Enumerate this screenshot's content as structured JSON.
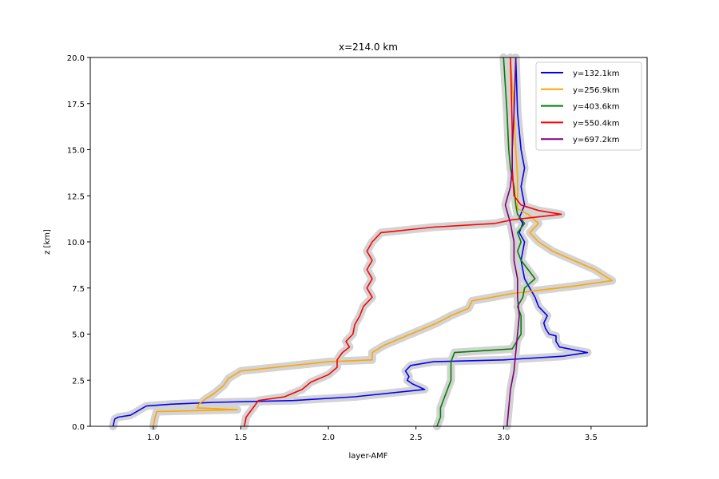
{
  "chart_data": {
    "type": "line",
    "title": "x=214.0 km",
    "xlabel": "layer-AMF",
    "ylabel": "z [km]",
    "xlim": [
      0.64,
      3.82
    ],
    "ylim": [
      0,
      20
    ],
    "xticks": [
      1.0,
      1.5,
      2.0,
      2.5,
      3.0,
      3.5
    ],
    "xtick_labels": [
      "1.0",
      "1.5",
      "2.0",
      "2.5",
      "3.0",
      "3.5"
    ],
    "yticks": [
      0,
      2.5,
      5,
      7.5,
      10,
      12.5,
      15,
      17.5,
      20
    ],
    "ytick_labels": [
      "0.0",
      "2.5",
      "5.0",
      "7.5",
      "10.0",
      "12.5",
      "15.0",
      "17.5",
      "20.0"
    ],
    "grid": false,
    "legend_position": "top-right",
    "uncertainty_band_color": "#d3d3d3",
    "series": [
      {
        "name": "y=132.1km",
        "color": "#0000ff",
        "z": [
          0.0,
          0.4,
          0.5,
          0.6,
          1.1,
          1.2,
          1.3,
          1.4,
          1.6,
          2.0,
          2.3,
          2.5,
          2.7,
          3.0,
          3.3,
          3.5,
          3.6,
          3.8,
          4.0,
          4.3,
          4.6,
          4.9,
          5.0,
          5.3,
          5.6,
          6.0,
          6.5,
          7.0,
          7.5,
          8.0,
          9.0,
          10.0,
          10.5,
          11.0,
          11.3,
          12.0,
          13.0,
          14.0,
          15.0,
          17.0,
          20.0
        ],
        "values": [
          0.77,
          0.78,
          0.8,
          0.87,
          0.96,
          1.1,
          1.35,
          1.8,
          2.15,
          2.55,
          2.48,
          2.45,
          2.46,
          2.44,
          2.47,
          2.6,
          3.0,
          3.34,
          3.48,
          3.32,
          3.3,
          3.3,
          3.26,
          3.24,
          3.23,
          3.25,
          3.2,
          3.18,
          3.15,
          3.12,
          3.1,
          3.12,
          3.09,
          3.11,
          3.09,
          3.12,
          3.1,
          3.12,
          3.1,
          3.08,
          3.07
        ]
      },
      {
        "name": "y=256.9km",
        "color": "#ffa500",
        "z": [
          0.0,
          0.5,
          0.8,
          0.9,
          1.0,
          1.2,
          1.5,
          1.8,
          2.2,
          2.6,
          3.0,
          3.5,
          3.6,
          3.8,
          4.0,
          4.4,
          4.8,
          5.2,
          5.6,
          6.0,
          6.4,
          6.8,
          7.2,
          7.6,
          7.9,
          8.5,
          9.0,
          9.5,
          10.0,
          10.5,
          11.0,
          11.5,
          11.8,
          12.5,
          13.5,
          15.0,
          17.0,
          20.0
        ],
        "values": [
          1.0,
          1.01,
          1.02,
          1.48,
          1.25,
          1.26,
          1.3,
          1.35,
          1.4,
          1.43,
          1.5,
          2.0,
          2.25,
          2.25,
          2.25,
          2.32,
          2.42,
          2.52,
          2.62,
          2.7,
          2.8,
          2.82,
          3.05,
          3.4,
          3.62,
          3.52,
          3.4,
          3.28,
          3.2,
          3.15,
          3.2,
          3.14,
          3.08,
          3.08,
          3.08,
          3.07,
          3.06,
          3.04
        ]
      },
      {
        "name": "y=403.6km",
        "color": "#008000",
        "z": [
          0.0,
          0.5,
          1.0,
          1.5,
          2.0,
          2.5,
          3.0,
          3.5,
          4.0,
          4.2,
          5.0,
          6.0,
          6.5,
          7.0,
          7.5,
          8.0,
          8.5,
          9.0,
          9.5,
          10.0,
          10.5,
          11.0,
          11.5,
          12.0,
          13.0,
          14.0,
          15.0,
          17.0,
          20.0
        ],
        "values": [
          2.62,
          2.64,
          2.64,
          2.66,
          2.68,
          2.7,
          2.7,
          2.7,
          2.72,
          3.05,
          3.1,
          3.1,
          3.08,
          3.11,
          3.12,
          3.18,
          3.14,
          3.1,
          3.08,
          3.1,
          3.08,
          3.12,
          3.08,
          3.07,
          3.06,
          3.04,
          3.03,
          3.02,
          3.0
        ]
      },
      {
        "name": "y=550.4km",
        "color": "#ff0000",
        "z": [
          0.0,
          0.5,
          1.0,
          1.4,
          1.6,
          2.0,
          2.4,
          2.8,
          3.2,
          3.6,
          4.0,
          4.3,
          4.6,
          5.0,
          5.5,
          6.0,
          6.5,
          7.0,
          7.5,
          8.0,
          8.5,
          9.0,
          9.5,
          10.0,
          10.5,
          10.8,
          11.0,
          11.2,
          11.5,
          11.7,
          12.0,
          12.5,
          14.0,
          16.0,
          20.0
        ],
        "values": [
          1.52,
          1.53,
          1.57,
          1.6,
          1.75,
          1.85,
          1.9,
          2.0,
          2.05,
          2.05,
          2.08,
          2.12,
          2.1,
          2.14,
          2.15,
          2.18,
          2.2,
          2.25,
          2.22,
          2.25,
          2.22,
          2.25,
          2.22,
          2.25,
          2.3,
          2.6,
          2.95,
          3.05,
          3.33,
          3.2,
          3.1,
          3.06,
          3.05,
          3.05,
          3.04
        ]
      },
      {
        "name": "y=697.2km",
        "color": "#800080",
        "z": [
          0.0,
          1.0,
          2.0,
          3.0,
          4.0,
          5.0,
          6.0,
          7.0,
          8.0,
          9.0,
          10.0,
          11.0,
          12.0,
          13.0,
          14.0,
          15.0,
          17.0,
          20.0
        ],
        "values": [
          3.02,
          3.03,
          3.04,
          3.06,
          3.07,
          3.08,
          3.09,
          3.08,
          3.08,
          3.06,
          3.06,
          3.04,
          3.01,
          3.04,
          3.05,
          3.05,
          3.06,
          3.07
        ]
      }
    ]
  }
}
